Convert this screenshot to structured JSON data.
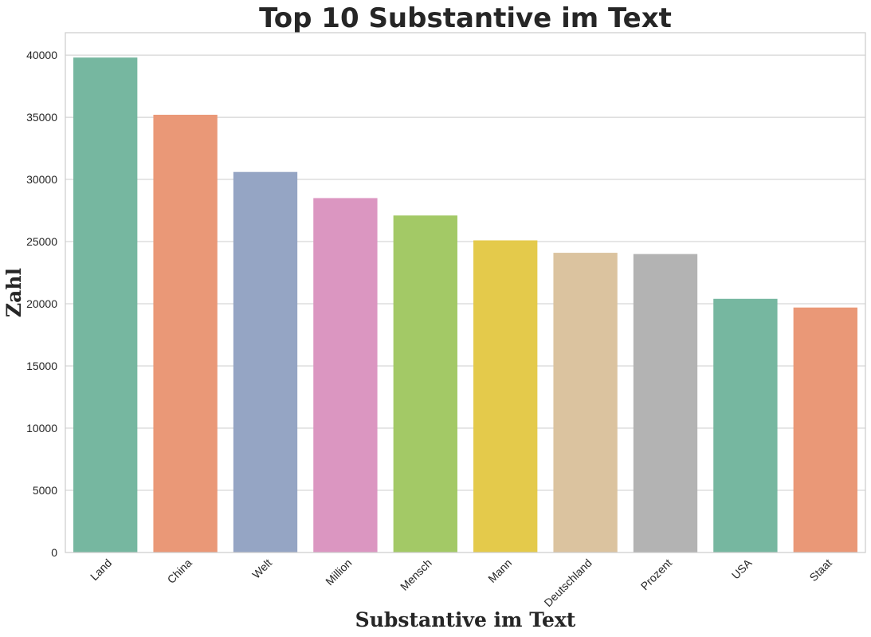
{
  "chart_data": {
    "type": "bar",
    "title": "Top 10 Substantive im Text",
    "xlabel": "Substantive im Text",
    "ylabel": "Zahl",
    "categories": [
      "Land",
      "China",
      "Welt",
      "Million",
      "Mensch",
      "Mann",
      "Deutschland",
      "Prozent",
      "USA",
      "Staat"
    ],
    "values": [
      39800,
      35200,
      30600,
      28500,
      27100,
      25100,
      24100,
      24000,
      20400,
      19700
    ],
    "colors": [
      "#76b7a0",
      "#ea9877",
      "#95a5c4",
      "#db96c1",
      "#a3c966",
      "#e4ca4b",
      "#dbc39f",
      "#b3b3b3",
      "#76b7a0",
      "#ea9877"
    ],
    "ylim": [
      0,
      41800
    ],
    "yticks": [
      0,
      5000,
      10000,
      15000,
      20000,
      25000,
      30000,
      35000,
      40000
    ],
    "grid": true,
    "legend": "none"
  }
}
